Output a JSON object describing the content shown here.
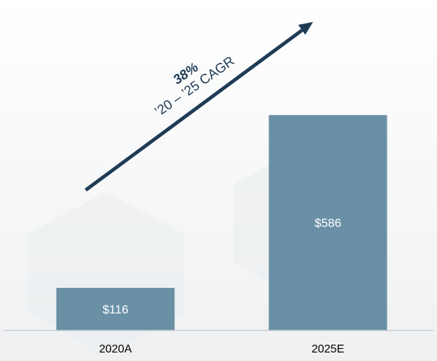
{
  "chart_data": {
    "type": "bar",
    "categories": [
      "2020A",
      "2025E"
    ],
    "values": [
      116,
      586
    ],
    "data_labels": [
      "$116",
      "$586"
    ],
    "ylim": [
      0,
      600
    ],
    "grid": false,
    "legend": "none",
    "bar_color": "#6a90a6",
    "annotation": {
      "value": "38%",
      "text": "’20 – ’25 CAGR",
      "color": "#1f3b56"
    }
  }
}
